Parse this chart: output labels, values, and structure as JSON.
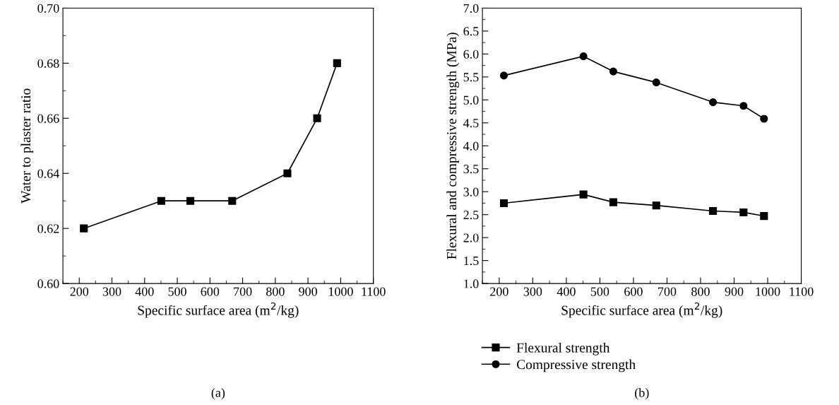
{
  "chart_data": [
    {
      "type": "line",
      "xlabel": "Specific surface area (m$^{2}$/kg)",
      "ylabel": "Water to plaster ratio",
      "annotations": [
        "(a)"
      ],
      "x": [
        214,
        451,
        540,
        668,
        837,
        928,
        989
      ],
      "series": [
        {
          "color": "#000000",
          "values": [
            0.62,
            0.63,
            0.63,
            0.63,
            0.64,
            0.66,
            0.68
          ],
          "marker": "square"
        }
      ],
      "xlim": [
        150,
        1100
      ],
      "xticks": [
        200,
        300,
        400,
        500,
        600,
        700,
        800,
        900,
        1000,
        1100
      ],
      "ylim": [
        0.6,
        0.7
      ],
      "yticks": [
        {
          "value": 0.6,
          "label": "0.60"
        },
        {
          "value": 0.62,
          "label": "0.62"
        },
        {
          "value": 0.64,
          "label": "0.64"
        },
        {
          "value": 0.66,
          "label": "0.66"
        },
        {
          "value": 0.68,
          "label": "0.68"
        },
        {
          "value": 0.7,
          "label": "0.70"
        }
      ],
      "grid": false,
      "legend": false,
      "line_style": "solid"
    },
    {
      "type": "line",
      "xlabel": "Specific surface area (m$^{2}$/kg)",
      "ylabel": "Flexural and compressive strength (MPa)",
      "annotations": [
        "(b)"
      ],
      "x": [
        214,
        451,
        540,
        668,
        837,
        928,
        989
      ],
      "series": [
        {
          "name": "Flexural strength",
          "color": "#000000",
          "marker": "square",
          "values": [
            2.75,
            2.94,
            2.77,
            2.7,
            2.58,
            2.55,
            2.47
          ]
        },
        {
          "name": "Compressive strength",
          "color": "#000000",
          "marker": "circle",
          "values": [
            5.53,
            5.95,
            5.62,
            5.38,
            4.95,
            4.87,
            4.59
          ]
        }
      ],
      "xlim": [
        150,
        1100
      ],
      "xticks": [
        200,
        300,
        400,
        500,
        600,
        700,
        800,
        900,
        1000,
        1100
      ],
      "ylim": [
        1.0,
        7.0
      ],
      "yticks": [
        {
          "value": 1.0,
          "label": "1.0"
        },
        {
          "value": 1.5,
          "label": "1.5"
        },
        {
          "value": 2.0,
          "label": "2.0"
        },
        {
          "value": 2.5,
          "label": "2.5"
        },
        {
          "value": 3.0,
          "label": "3.0"
        },
        {
          "value": 3.5,
          "label": "3.5"
        },
        {
          "value": 4.0,
          "label": "4.0"
        },
        {
          "value": 4.5,
          "label": "4.5"
        },
        {
          "value": 5.0,
          "label": "5.0"
        },
        {
          "value": 5.5,
          "label": "5.5"
        },
        {
          "value": 6.0,
          "label": "6.0"
        },
        {
          "value": 6.5,
          "label": "6.5"
        },
        {
          "value": 7.0,
          "label": "7.0"
        }
      ],
      "grid": false,
      "legend": "bottom left",
      "line_style": "solid"
    }
  ]
}
